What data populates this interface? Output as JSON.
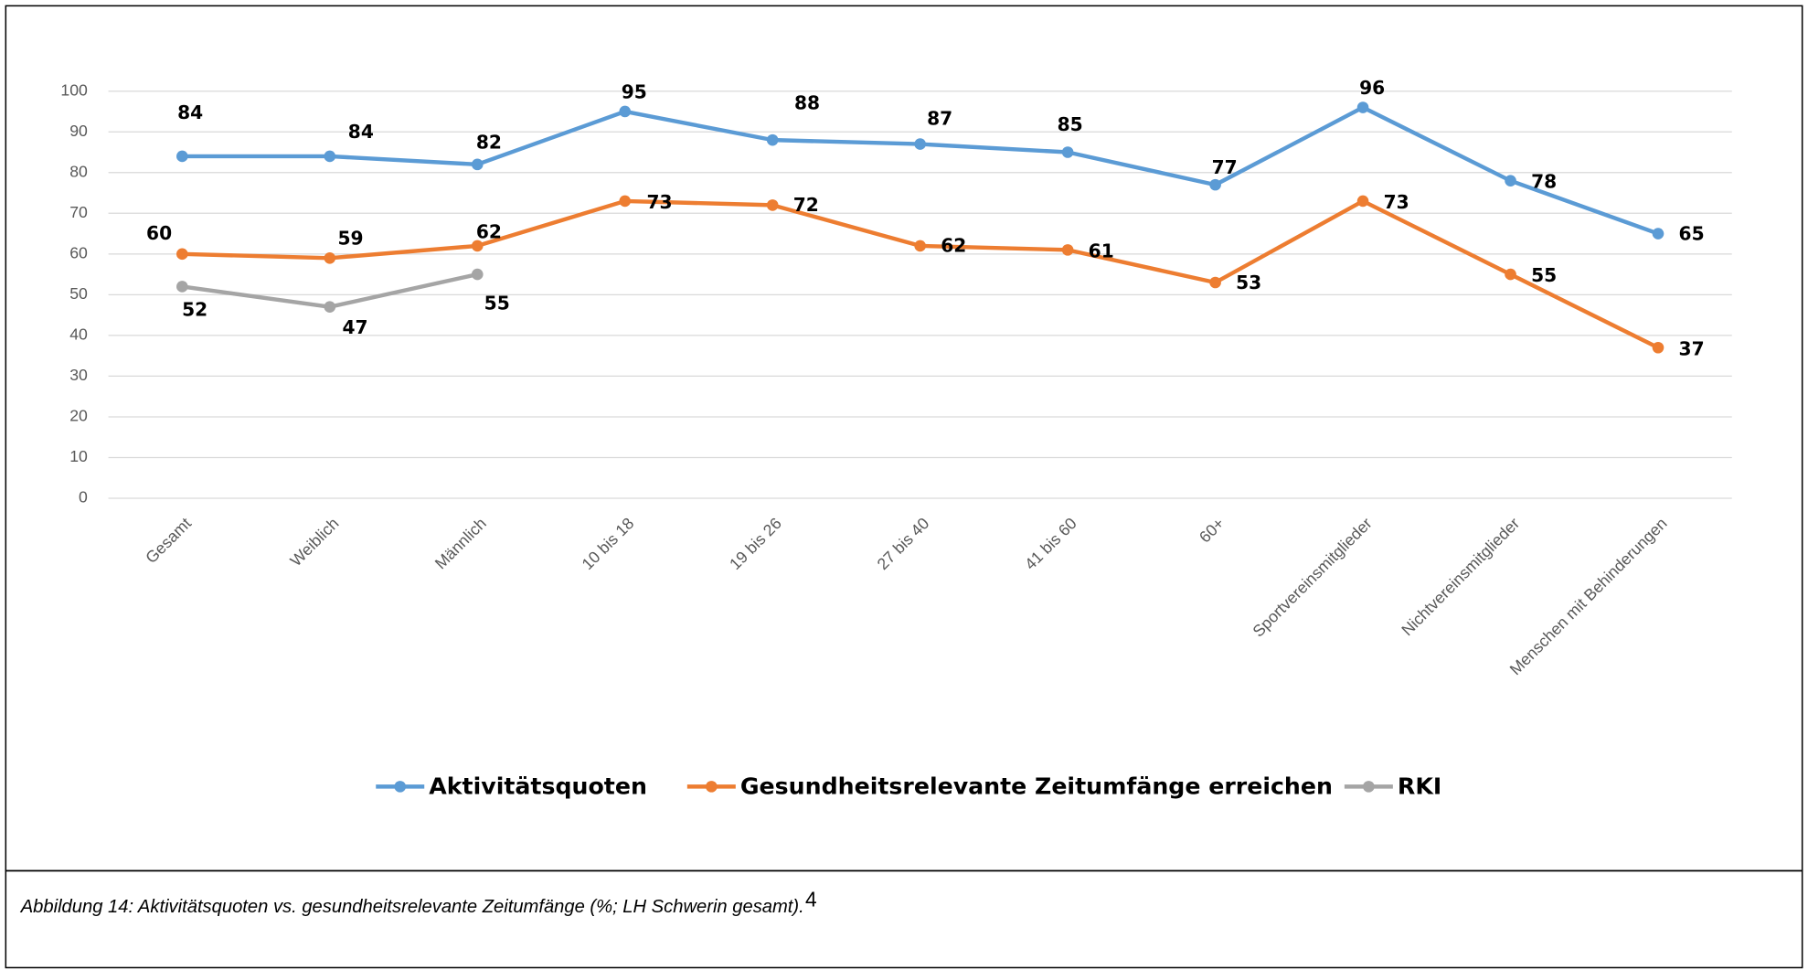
{
  "chart_data": {
    "type": "line",
    "categories": [
      "Gesamt",
      "Weiblich",
      "Männlich",
      "10 bis 18",
      "19 bis 26",
      "27 bis 40",
      "41 bis 60",
      "60+",
      "Sportvereinsmitglieder",
      "Nichtvereinsmitglieder",
      "Menschen mit Behinderungen"
    ],
    "series": [
      {
        "name": "Aktivitätsquoten",
        "color": "#5b9bd5",
        "values": [
          84,
          84,
          82,
          95,
          88,
          87,
          85,
          77,
          96,
          78,
          65
        ]
      },
      {
        "name": "Gesundheitsrelevante Zeitumfänge erreichen",
        "color": "#ed7d31",
        "values": [
          60,
          59,
          62,
          73,
          72,
          62,
          61,
          53,
          73,
          55,
          37
        ]
      },
      {
        "name": "RKI",
        "color": "#a5a5a5",
        "values": [
          52,
          47,
          55,
          null,
          null,
          null,
          null,
          null,
          null,
          null,
          null
        ]
      }
    ],
    "ylim": [
      0,
      100
    ],
    "yticks": [
      0,
      10,
      20,
      30,
      40,
      50,
      60,
      70,
      80,
      90,
      100
    ],
    "grid": true,
    "legend": "bottom"
  },
  "caption": {
    "text": "Abbildung 14: Aktivitätsquoten vs. gesundheitsrelevante Zeitumfänge (%; LH Schwerin gesamt).",
    "footnote": "4"
  }
}
